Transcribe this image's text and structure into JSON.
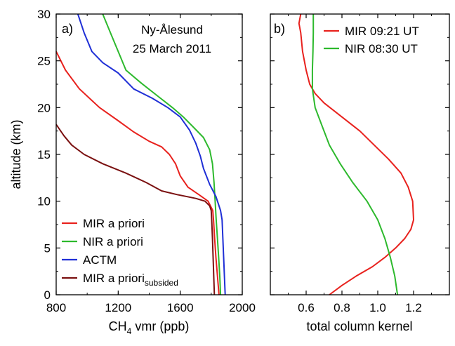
{
  "chart_data": [
    {
      "panel_label": "a)",
      "type": "line",
      "title_lines": [
        "Ny-Ålesund",
        "25 March 2011"
      ],
      "xlabel_main": "CH",
      "xlabel_sub": "4",
      "xlabel_rest": " vmr (ppb)",
      "ylabel": "altitude (km)",
      "xlim": [
        800,
        2000
      ],
      "ylim": [
        0,
        30
      ],
      "xticks": [
        800,
        1200,
        1600,
        2000
      ],
      "yticks": [
        0,
        5,
        10,
        15,
        20,
        25,
        30
      ],
      "legend_position": "bottom-left",
      "series": [
        {
          "name": "MIR a priori",
          "name_sub": "",
          "color": "#e8211d",
          "points": [
            [
              800,
              26
            ],
            [
              860,
              24
            ],
            [
              950,
              22
            ],
            [
              1080,
              20
            ],
            [
              1200,
              18.6
            ],
            [
              1300,
              17.4
            ],
            [
              1400,
              16.4
            ],
            [
              1480,
              15.8
            ],
            [
              1530,
              15
            ],
            [
              1570,
              14
            ],
            [
              1600,
              12.7
            ],
            [
              1650,
              11.5
            ],
            [
              1720,
              10.7
            ],
            [
              1780,
              10
            ],
            [
              1810,
              9
            ],
            [
              1815,
              8
            ],
            [
              1822,
              6
            ],
            [
              1830,
              4
            ],
            [
              1840,
              2
            ],
            [
              1850,
              0
            ]
          ]
        },
        {
          "name": "NIR a priori",
          "name_sub": "",
          "color": "#2db92d",
          "points": [
            [
              1100,
              30
            ],
            [
              1150,
              28
            ],
            [
              1200,
              26
            ],
            [
              1250,
              24
            ],
            [
              1350,
              22.6
            ],
            [
              1450,
              21.3
            ],
            [
              1550,
              20
            ],
            [
              1620,
              19
            ],
            [
              1680,
              18
            ],
            [
              1750,
              16.8
            ],
            [
              1790,
              15.5
            ],
            [
              1808,
              14
            ],
            [
              1818,
              12
            ],
            [
              1825,
              10
            ],
            [
              1832,
              8
            ],
            [
              1840,
              6
            ],
            [
              1848,
              4
            ],
            [
              1855,
              2
            ],
            [
              1860,
              0
            ]
          ]
        },
        {
          "name": "ACTM",
          "name_sub": "",
          "color": "#1f2fd6",
          "points": [
            [
              940,
              30
            ],
            [
              980,
              28
            ],
            [
              1030,
              26
            ],
            [
              1100,
              24.8
            ],
            [
              1200,
              23.7
            ],
            [
              1300,
              22
            ],
            [
              1420,
              21
            ],
            [
              1520,
              20
            ],
            [
              1600,
              19
            ],
            [
              1660,
              17.6
            ],
            [
              1700,
              16.2
            ],
            [
              1730,
              14.8
            ],
            [
              1750,
              13.5
            ],
            [
              1790,
              11.8
            ],
            [
              1830,
              10.5
            ],
            [
              1860,
              9
            ],
            [
              1870,
              8
            ],
            [
              1875,
              6
            ],
            [
              1880,
              4
            ],
            [
              1885,
              2
            ],
            [
              1890,
              0
            ]
          ]
        },
        {
          "name": "MIR a priori",
          "name_sub": "subsided",
          "color": "#7a1010",
          "points": [
            [
              800,
              18.2
            ],
            [
              850,
              17
            ],
            [
              900,
              16
            ],
            [
              980,
              15
            ],
            [
              1100,
              14
            ],
            [
              1250,
              13
            ],
            [
              1380,
              12
            ],
            [
              1480,
              11.1
            ],
            [
              1580,
              10.7
            ],
            [
              1700,
              10.3
            ],
            [
              1760,
              10
            ],
            [
              1790,
              9.5
            ],
            [
              1800,
              9
            ],
            [
              1803,
              8
            ],
            [
              1808,
              6
            ],
            [
              1812,
              4
            ],
            [
              1816,
              2
            ],
            [
              1820,
              0
            ]
          ]
        }
      ]
    },
    {
      "panel_label": "b)",
      "type": "line",
      "xlabel": "total column kernel",
      "xlim": [
        0.4,
        1.4
      ],
      "ylim": [
        0,
        30
      ],
      "xticks": [
        0.6,
        0.8,
        1.0,
        1.2
      ],
      "xtick_labels": [
        "0.6",
        "0.8",
        "1.0",
        "1.2"
      ],
      "legend_position": "top-right",
      "series": [
        {
          "name": "MIR 09:21 UT",
          "color": "#e8211d",
          "points": [
            [
              0.57,
              30
            ],
            [
              0.56,
              29
            ],
            [
              0.57,
              28
            ],
            [
              0.58,
              26
            ],
            [
              0.6,
              24
            ],
            [
              0.62,
              22.5
            ],
            [
              0.65,
              21.5
            ],
            [
              0.7,
              20.5
            ],
            [
              0.8,
              19
            ],
            [
              0.9,
              17.5
            ],
            [
              0.98,
              16
            ],
            [
              1.06,
              14.5
            ],
            [
              1.13,
              13
            ],
            [
              1.17,
              11.5
            ],
            [
              1.195,
              10
            ],
            [
              1.2,
              8
            ],
            [
              1.185,
              7
            ],
            [
              1.15,
              6
            ],
            [
              1.1,
              5
            ],
            [
              1.04,
              4
            ],
            [
              0.97,
              3
            ],
            [
              0.88,
              2
            ],
            [
              0.8,
              1
            ],
            [
              0.73,
              0
            ]
          ]
        },
        {
          "name": "NIR 08:30 UT",
          "color": "#2db92d",
          "points": [
            [
              0.64,
              30
            ],
            [
              0.64,
              28
            ],
            [
              0.638,
              26
            ],
            [
              0.635,
              24
            ],
            [
              0.635,
              22
            ],
            [
              0.65,
              20
            ],
            [
              0.69,
              18
            ],
            [
              0.73,
              16
            ],
            [
              0.79,
              14
            ],
            [
              0.86,
              12
            ],
            [
              0.94,
              10
            ],
            [
              1.0,
              8
            ],
            [
              1.04,
              6
            ],
            [
              1.07,
              4
            ],
            [
              1.095,
              2
            ],
            [
              1.11,
              0
            ]
          ]
        }
      ]
    }
  ]
}
